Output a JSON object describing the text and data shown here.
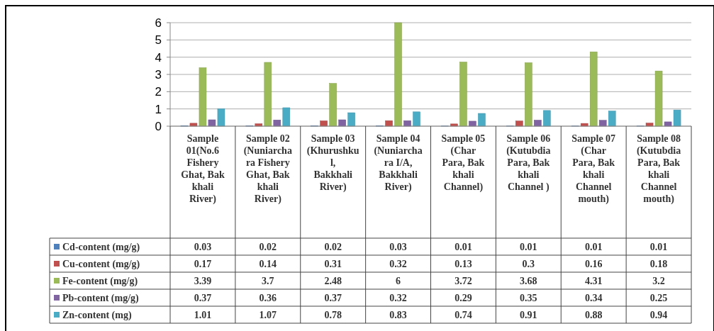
{
  "chart_data": {
    "type": "bar",
    "categories": [
      "Sample 01(No.6 Fishery Ghat, Bak khali River)",
      "Sample 02 (Nuniarchara Fishery Ghat, Bak khali River)",
      "Sample 03 (Khurushkul, Bakkhali River)",
      "Sample 04 (Nuniarchara I/A, Bakkhali River)",
      "Sample 05 (Char Para, Bak khali Channel)",
      "Sample 06 (Kutubdia Para, Bak khali Channel )",
      "Sample 07 (Char Para, Bak khali Channel mouth)",
      "Sample 08 (Kutubdia Para, Bak khali Channel mouth)"
    ],
    "series": [
      {
        "name": "Cd-content (mg/g)",
        "color": "#4f81bd",
        "values": [
          0.03,
          0.02,
          0.02,
          0.03,
          0.01,
          0.01,
          0.01,
          0.01
        ]
      },
      {
        "name": "Cu-content (mg/g)",
        "color": "#c0504d",
        "values": [
          0.17,
          0.14,
          0.31,
          0.32,
          0.13,
          0.3,
          0.16,
          0.18
        ]
      },
      {
        "name": "Fe-content (mg/g)",
        "color": "#9bbb59",
        "values": [
          3.39,
          3.7,
          2.48,
          6,
          3.72,
          3.68,
          4.31,
          3.2
        ]
      },
      {
        "name": "Pb-content (mg/g)",
        "color": "#8064a2",
        "values": [
          0.37,
          0.36,
          0.37,
          0.32,
          0.29,
          0.35,
          0.34,
          0.25
        ]
      },
      {
        "name": "Zn-content (mg)",
        "color": "#4bacc6",
        "values": [
          1.01,
          1.07,
          0.78,
          0.83,
          0.74,
          0.91,
          0.88,
          0.94
        ]
      }
    ],
    "ylim": [
      0,
      6
    ],
    "yticks": [
      0,
      1,
      2,
      3,
      4,
      5,
      6
    ],
    "grid": "y",
    "legend": "bottom",
    "data_labels": true
  }
}
